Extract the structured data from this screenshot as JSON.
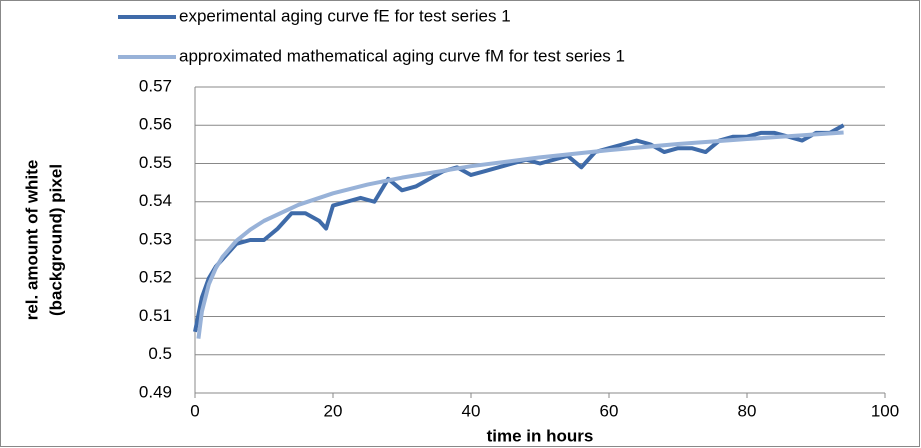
{
  "chart_data": {
    "type": "line",
    "xlabel": "time in hours",
    "ylabel": [
      "rel. amount of white",
      "(background) pixel"
    ],
    "xlim": [
      0,
      100
    ],
    "xticks": [
      0,
      20,
      40,
      60,
      80,
      100
    ],
    "ylim": [
      0.49,
      0.57
    ],
    "yticks": [
      0.49,
      0.5,
      0.51,
      0.52,
      0.53,
      0.54,
      0.55,
      0.56,
      0.57
    ],
    "grid": true,
    "legend": "top",
    "series": [
      {
        "name": "experimental aging curve fE for test series 1",
        "color": "#3f6ba9",
        "x": [
          0,
          1,
          2,
          3,
          4,
          6,
          8,
          10,
          12,
          14,
          16,
          18,
          19,
          20,
          22,
          24,
          26,
          28,
          30,
          32,
          34,
          36,
          38,
          40,
          42,
          44,
          46,
          48,
          50,
          52,
          54,
          56,
          58,
          60,
          62,
          64,
          66,
          68,
          70,
          72,
          74,
          76,
          78,
          80,
          82,
          84,
          86,
          88,
          90,
          92,
          94
        ],
        "values": [
          0.506,
          0.515,
          0.52,
          0.523,
          0.525,
          0.529,
          0.53,
          0.53,
          0.533,
          0.537,
          0.537,
          0.535,
          0.533,
          0.539,
          0.54,
          0.541,
          0.54,
          0.546,
          0.543,
          0.544,
          0.546,
          0.548,
          0.549,
          0.547,
          0.548,
          0.549,
          0.55,
          0.551,
          0.55,
          0.551,
          0.552,
          0.549,
          0.553,
          0.554,
          0.555,
          0.556,
          0.555,
          0.553,
          0.554,
          0.554,
          0.553,
          0.556,
          0.557,
          0.557,
          0.558,
          0.558,
          0.557,
          0.556,
          0.558,
          0.558,
          0.56
        ]
      },
      {
        "name": "approximated mathematical aging curve fM for test series 1",
        "color": "#98b2d8",
        "x": [
          0.5,
          1,
          2,
          3,
          4,
          6,
          8,
          10,
          15,
          20,
          25,
          30,
          40,
          50,
          60,
          70,
          80,
          94
        ],
        "values": [
          0.5042,
          0.5113,
          0.5184,
          0.5226,
          0.5256,
          0.5298,
          0.5327,
          0.535,
          0.5392,
          0.5422,
          0.5445,
          0.5463,
          0.5493,
          0.5516,
          0.5535,
          0.5551,
          0.5564,
          0.5581
        ]
      }
    ]
  }
}
